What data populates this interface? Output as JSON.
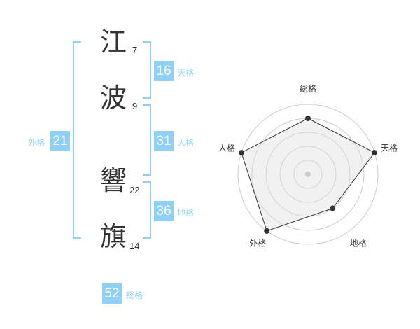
{
  "chars": [
    {
      "char": "江",
      "strokes": "7"
    },
    {
      "char": "波",
      "strokes": "9"
    },
    {
      "char": "響",
      "strokes": "22"
    },
    {
      "char": "旗",
      "strokes": "14"
    }
  ],
  "kaku": {
    "tenkaku": {
      "label": "天格",
      "value": "16"
    },
    "jinkaku": {
      "label": "人格",
      "value": "31"
    },
    "chikaku": {
      "label": "地格",
      "value": "36"
    },
    "gaikaku": {
      "label": "外格",
      "value": "21"
    },
    "soukaku": {
      "label": "総格",
      "value": "52"
    }
  },
  "accent_color": "#8fd0f7",
  "chart_data": {
    "type": "radar",
    "axes": [
      "総格",
      "天格",
      "地格",
      "外格",
      "人格"
    ],
    "values": [
      4,
      5,
      3,
      5,
      5
    ],
    "range": [
      0,
      5
    ]
  }
}
